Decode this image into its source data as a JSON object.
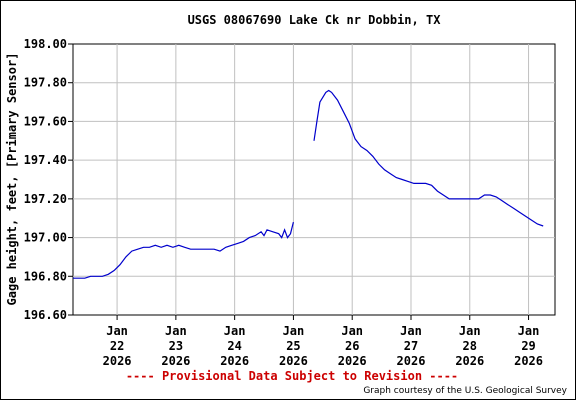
{
  "chart_data": {
    "type": "line",
    "title": "USGS 08067690 Lake Ck nr Dobbin, TX",
    "ylabel": "Gage height, feet, [Primary Sensor]",
    "xlabel": "",
    "ylim": [
      196.6,
      198.0
    ],
    "xlim": [
      0,
      8.2
    ],
    "yticks": [
      "196.60",
      "196.80",
      "197.00",
      "197.20",
      "197.40",
      "197.60",
      "197.80",
      "198.00"
    ],
    "xticks": [
      {
        "pos": 0.75,
        "lines": [
          "Jan",
          "22",
          "2026"
        ]
      },
      {
        "pos": 1.75,
        "lines": [
          "Jan",
          "23",
          "2026"
        ]
      },
      {
        "pos": 2.75,
        "lines": [
          "Jan",
          "24",
          "2026"
        ]
      },
      {
        "pos": 3.75,
        "lines": [
          "Jan",
          "25",
          "2026"
        ]
      },
      {
        "pos": 4.75,
        "lines": [
          "Jan",
          "26",
          "2026"
        ]
      },
      {
        "pos": 5.75,
        "lines": [
          "Jan",
          "27",
          "2026"
        ]
      },
      {
        "pos": 6.75,
        "lines": [
          "Jan",
          "28",
          "2026"
        ]
      },
      {
        "pos": 7.75,
        "lines": [
          "Jan",
          "29",
          "2026"
        ]
      }
    ],
    "grid": true,
    "series": [
      {
        "color": "#0000cc",
        "segments": [
          [
            [
              0.0,
              196.79
            ],
            [
              0.1,
              196.79
            ],
            [
              0.2,
              196.79
            ],
            [
              0.3,
              196.8
            ],
            [
              0.4,
              196.8
            ],
            [
              0.5,
              196.8
            ],
            [
              0.6,
              196.81
            ],
            [
              0.7,
              196.83
            ],
            [
              0.8,
              196.86
            ],
            [
              0.9,
              196.9
            ],
            [
              1.0,
              196.93
            ],
            [
              1.1,
              196.94
            ],
            [
              1.2,
              196.95
            ],
            [
              1.3,
              196.95
            ],
            [
              1.4,
              196.96
            ],
            [
              1.5,
              196.95
            ],
            [
              1.6,
              196.96
            ],
            [
              1.7,
              196.95
            ],
            [
              1.8,
              196.96
            ],
            [
              1.9,
              196.95
            ],
            [
              2.0,
              196.94
            ],
            [
              2.1,
              196.94
            ],
            [
              2.2,
              196.94
            ],
            [
              2.3,
              196.94
            ],
            [
              2.4,
              196.94
            ],
            [
              2.5,
              196.93
            ],
            [
              2.6,
              196.95
            ],
            [
              2.7,
              196.96
            ],
            [
              2.8,
              196.97
            ],
            [
              2.9,
              196.98
            ],
            [
              3.0,
              197.0
            ],
            [
              3.1,
              197.01
            ],
            [
              3.2,
              197.03
            ],
            [
              3.25,
              197.01
            ],
            [
              3.3,
              197.04
            ],
            [
              3.4,
              197.03
            ],
            [
              3.5,
              197.02
            ],
            [
              3.55,
              197.0
            ],
            [
              3.6,
              197.04
            ],
            [
              3.65,
              197.0
            ],
            [
              3.7,
              197.02
            ],
            [
              3.75,
              197.08
            ]
          ],
          [
            [
              4.1,
              197.5
            ],
            [
              4.15,
              197.6
            ],
            [
              4.2,
              197.7
            ],
            [
              4.3,
              197.75
            ],
            [
              4.35,
              197.76
            ],
            [
              4.4,
              197.75
            ],
            [
              4.5,
              197.71
            ],
            [
              4.6,
              197.65
            ],
            [
              4.7,
              197.59
            ],
            [
              4.8,
              197.51
            ],
            [
              4.9,
              197.47
            ],
            [
              5.0,
              197.45
            ],
            [
              5.1,
              197.42
            ],
            [
              5.2,
              197.38
            ],
            [
              5.3,
              197.35
            ],
            [
              5.4,
              197.33
            ],
            [
              5.5,
              197.31
            ],
            [
              5.6,
              197.3
            ],
            [
              5.7,
              197.29
            ],
            [
              5.8,
              197.28
            ],
            [
              5.9,
              197.28
            ],
            [
              6.0,
              197.28
            ],
            [
              6.1,
              197.27
            ],
            [
              6.2,
              197.24
            ],
            [
              6.3,
              197.22
            ],
            [
              6.4,
              197.2
            ],
            [
              6.5,
              197.2
            ],
            [
              6.6,
              197.2
            ],
            [
              6.7,
              197.2
            ],
            [
              6.8,
              197.2
            ],
            [
              6.9,
              197.2
            ],
            [
              7.0,
              197.22
            ],
            [
              7.1,
              197.22
            ],
            [
              7.2,
              197.21
            ],
            [
              7.3,
              197.19
            ],
            [
              7.4,
              197.17
            ],
            [
              7.5,
              197.15
            ],
            [
              7.6,
              197.13
            ],
            [
              7.7,
              197.11
            ],
            [
              7.8,
              197.09
            ],
            [
              7.9,
              197.07
            ],
            [
              8.0,
              197.06
            ]
          ]
        ]
      }
    ]
  },
  "footer": {
    "provisional": "---- Provisional Data Subject to Revision ----",
    "credit": "Graph courtesy of the U.S. Geological Survey"
  }
}
